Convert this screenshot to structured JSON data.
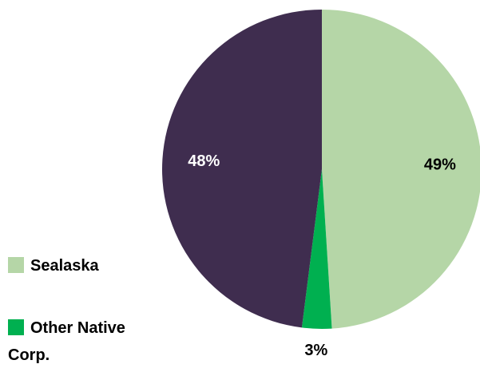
{
  "chart_data": {
    "type": "pie",
    "categories": [
      "Sealaska",
      "Other Native Corp.",
      null
    ],
    "values": [
      49,
      3,
      48
    ],
    "value_labels": [
      "49%",
      "3%",
      "48%"
    ],
    "colors": [
      "#b5d6a7",
      "#00b050",
      "#3f2d4f"
    ],
    "label_colors": [
      "#000000",
      "#000000",
      "#ffffff"
    ],
    "legend": "left"
  }
}
